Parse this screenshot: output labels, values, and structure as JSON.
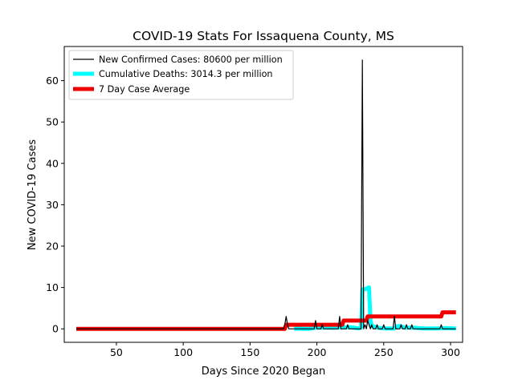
{
  "chart_data": {
    "type": "line",
    "title": "COVID-19 Stats For Issaquena County, MS",
    "xlabel": "Days Since 2020 Began",
    "ylabel": "New COVID-19 Cases",
    "xlim": [
      11,
      309
    ],
    "ylim": [
      -3.25,
      68.25
    ],
    "xticks": [
      50,
      100,
      150,
      200,
      250,
      300
    ],
    "yticks": [
      0,
      10,
      20,
      30,
      40,
      50,
      60
    ],
    "grid": false,
    "legend_position": "top-left",
    "series": [
      {
        "name": "New Confirmed Cases: 80600 per million",
        "color": "#000000",
        "style": "thin",
        "x": [
          20,
          175,
          176,
          177,
          178,
          179,
          198,
          199,
          200,
          203,
          204,
          205,
          216,
          217,
          218,
          222,
          223,
          224,
          233,
          234,
          235,
          236,
          237,
          238,
          240,
          241,
          242,
          244,
          245,
          246,
          249,
          250,
          251,
          257,
          258,
          259,
          262,
          263,
          264,
          266,
          267,
          268,
          270,
          271,
          272,
          292,
          293,
          294,
          304
        ],
        "y": [
          0,
          0,
          1,
          3,
          1,
          0,
          0,
          2,
          0,
          0,
          1,
          0,
          0,
          3,
          0,
          0,
          1,
          0,
          0,
          65,
          0,
          1,
          0,
          2,
          0,
          1,
          0,
          0,
          1,
          0,
          0,
          1,
          0,
          0,
          3,
          0,
          0,
          1,
          0,
          0,
          1,
          0,
          0,
          1,
          0,
          0,
          1,
          0,
          0
        ]
      },
      {
        "name": "Cumulative Deaths: 3014.3 per million",
        "color": "#00ffff",
        "style": "thick",
        "x": [
          183,
          186,
          190,
          194,
          200,
          205,
          214,
          220,
          226,
          231,
          233,
          234,
          236,
          239,
          240,
          241,
          243,
          247,
          251,
          255,
          258,
          260,
          262,
          266,
          272,
          280,
          290,
          296,
          304
        ],
        "y": [
          0,
          0.1,
          0,
          0,
          0.3,
          0.3,
          0.3,
          0.4,
          0.4,
          0.1,
          0.3,
          9.5,
          9.6,
          10,
          2,
          0.8,
          0.5,
          0.2,
          0.1,
          0.1,
          0.1,
          0.6,
          0.7,
          0.3,
          0.3,
          0.1,
          0.1,
          0.2,
          0.1
        ]
      },
      {
        "name": "7 Day Case Average",
        "color": "#ee0000",
        "style": "thick-step",
        "x": [
          20,
          176,
          177,
          219,
          220,
          237,
          238,
          293,
          294,
          304
        ],
        "y": [
          0,
          0,
          1,
          1,
          2,
          2,
          3,
          3,
          4,
          4
        ]
      }
    ]
  }
}
